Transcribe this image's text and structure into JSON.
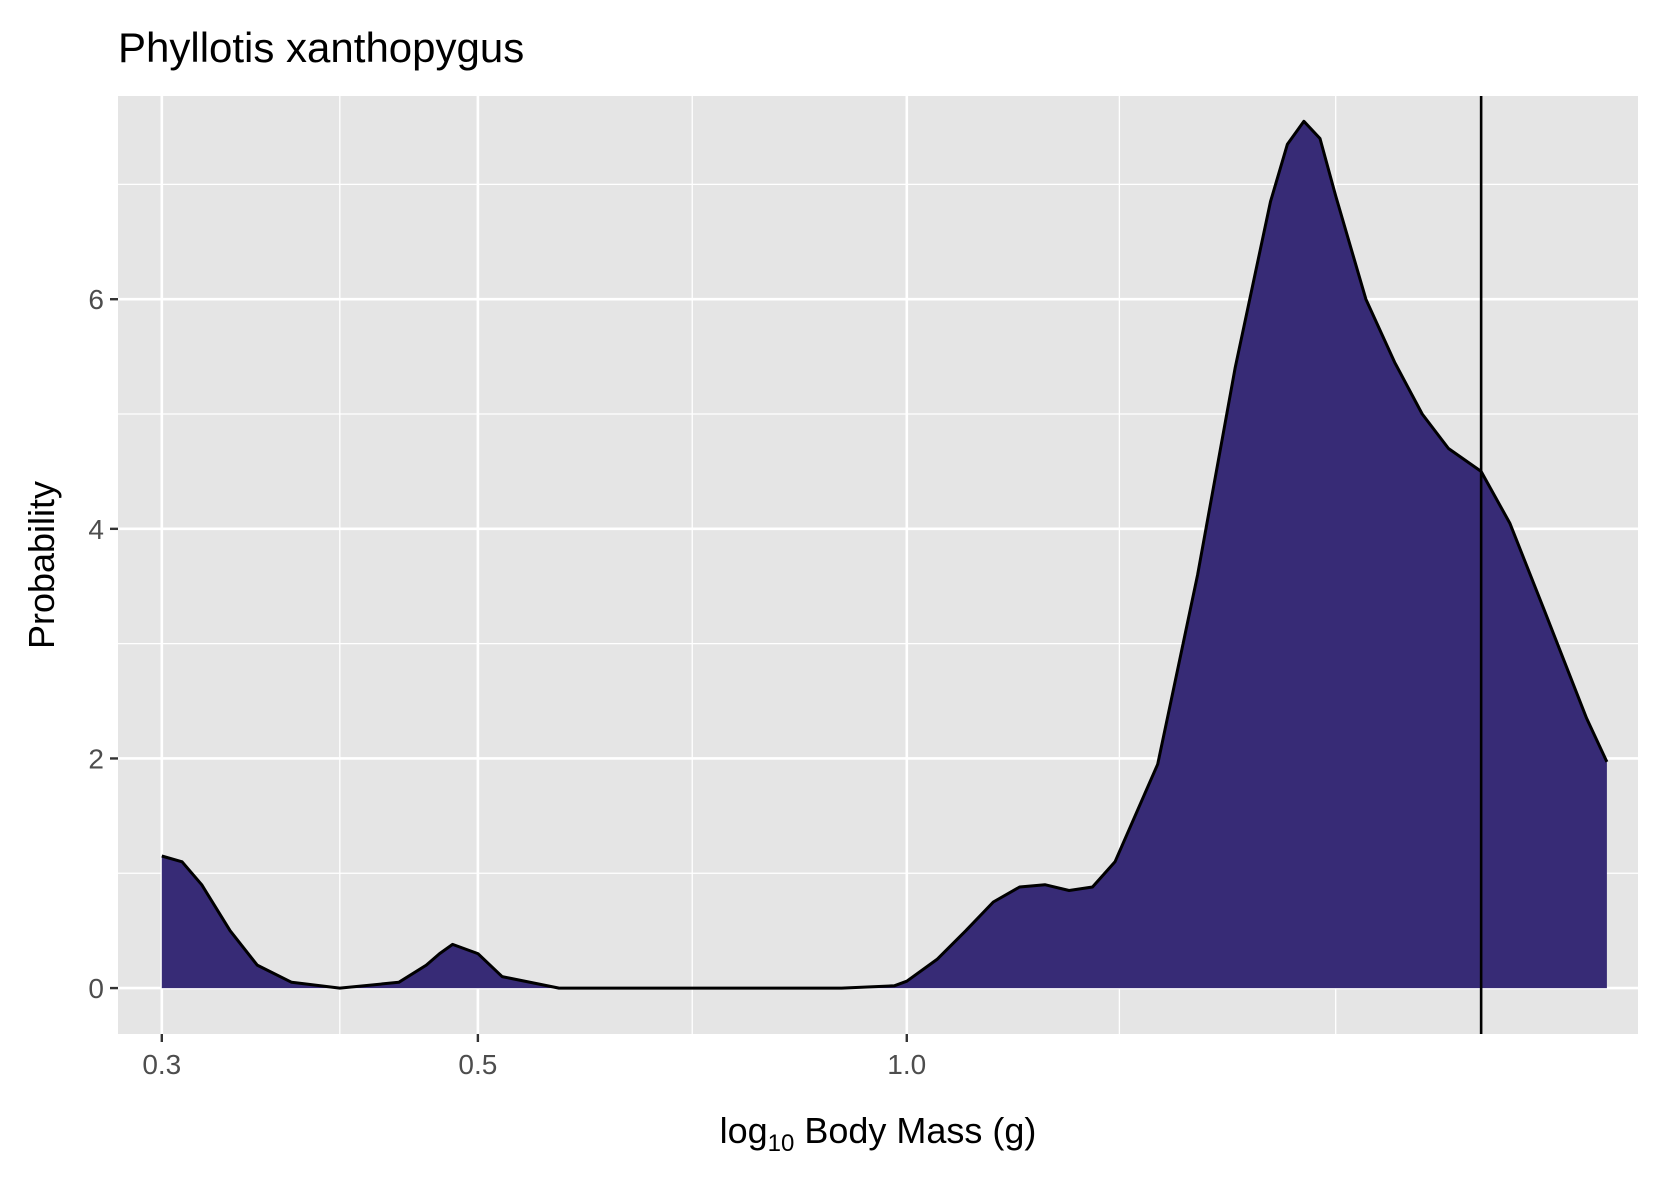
{
  "chart_data": {
    "type": "area",
    "title": "Phyllotis xanthopygus",
    "xlabel_prefix": "log",
    "xlabel_subscript": "10",
    "xlabel_suffix": " Body Mass (g)",
    "ylabel": "Probability",
    "x_scale": "log10",
    "xlim": [
      0.2795,
      3.26
    ],
    "ylim": [
      -0.4,
      7.77
    ],
    "x_ticks": [
      {
        "value": 0.3,
        "label": "0.3"
      },
      {
        "value": 0.5,
        "label": "0.5"
      },
      {
        "value": 1.0,
        "label": "1.0"
      }
    ],
    "x_minor_ticks": [
      0.4,
      0.707,
      1.41,
      2.0
    ],
    "y_ticks": [
      {
        "value": 0,
        "label": "0"
      },
      {
        "value": 2,
        "label": "2"
      },
      {
        "value": 4,
        "label": "4"
      },
      {
        "value": 6,
        "label": "6"
      }
    ],
    "y_minor_ticks": [
      1,
      3,
      5,
      7
    ],
    "vline_x": 2.53,
    "series": [
      {
        "fill": "#372b76",
        "stroke": "#000000",
        "x": [
          0.3,
          0.31,
          0.32,
          0.335,
          0.35,
          0.37,
          0.4,
          0.44,
          0.46,
          0.47,
          0.48,
          0.5,
          0.52,
          0.57,
          0.7,
          0.9,
          0.98,
          1.0,
          1.05,
          1.1,
          1.15,
          1.2,
          1.25,
          1.3,
          1.35,
          1.4,
          1.5,
          1.6,
          1.7,
          1.8,
          1.85,
          1.9,
          1.95,
          2.0,
          2.1,
          2.2,
          2.3,
          2.4,
          2.53,
          2.65,
          2.8,
          3.0,
          3.1
        ],
        "y": [
          1.15,
          1.1,
          0.9,
          0.5,
          0.2,
          0.05,
          0.0,
          0.05,
          0.2,
          0.3,
          0.38,
          0.3,
          0.1,
          0.0,
          0.0,
          0.0,
          0.02,
          0.06,
          0.25,
          0.5,
          0.75,
          0.88,
          0.9,
          0.85,
          0.88,
          1.1,
          1.95,
          3.6,
          5.4,
          6.85,
          7.35,
          7.55,
          7.4,
          6.9,
          6.0,
          5.45,
          5.0,
          4.7,
          4.5,
          4.05,
          3.3,
          2.35,
          1.97
        ]
      }
    ]
  }
}
